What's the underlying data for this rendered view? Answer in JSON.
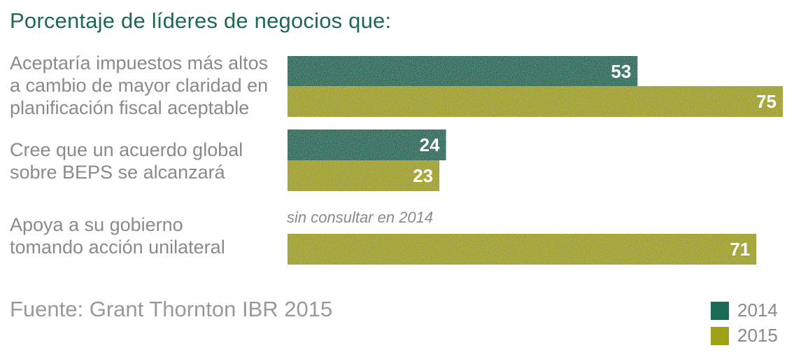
{
  "chart_data": {
    "type": "bar",
    "orientation": "horizontal",
    "title": "Porcentaje de líderes de negocios que:",
    "categories": [
      "Aceptaría impuestos más altos\na cambio de mayor claridad en\nplanificación fiscal aceptable",
      "Cree que un acuerdo global\nsobre BEPS se alcanzará",
      "Apoya a su gobierno\ntomando acción unilateral"
    ],
    "series": [
      {
        "name": "2014",
        "color": "#1b6b56",
        "values": [
          53,
          24,
          null
        ]
      },
      {
        "name": "2015",
        "color": "#a0a018",
        "values": [
          75,
          23,
          71
        ]
      }
    ],
    "annotations": [
      "sin consultar en 2014"
    ],
    "xlim": [
      0,
      75
    ],
    "grid": false,
    "legend_position": "bottom-right",
    "source": "Fuente: Grant Thornton IBR 2015"
  }
}
